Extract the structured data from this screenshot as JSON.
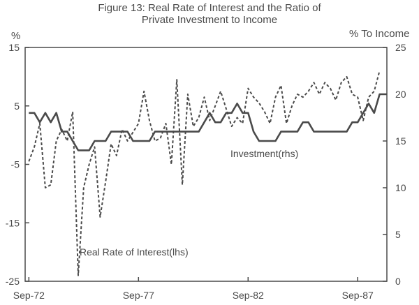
{
  "chart_data": {
    "type": "line",
    "title": [
      "Figure 13: Real Rate of Interest and the Ratio of",
      "Private Investment to Income"
    ],
    "left_axis": {
      "unit": "%",
      "range": [
        -25,
        15
      ],
      "ticks": [
        15,
        5,
        -5,
        -15,
        -25
      ]
    },
    "right_axis": {
      "unit": "% To Income",
      "range": [
        0,
        25
      ],
      "ticks": [
        25,
        20,
        15,
        10,
        5,
        0
      ]
    },
    "x_axis": {
      "range": [
        1972.5,
        1989.0
      ],
      "ticks": [
        {
          "label": "Sep-72",
          "value": 1972.67
        },
        {
          "label": "Sep-77",
          "value": 1977.67
        },
        {
          "label": "Sep-82",
          "value": 1982.67
        },
        {
          "label": "Sep-87",
          "value": 1987.67
        }
      ]
    },
    "series": [
      {
        "name": "Real Rate of Interest(lhs)",
        "axis": "left",
        "style": "dashed",
        "x": [
          1972.67,
          1972.92,
          1973.17,
          1973.42,
          1973.67,
          1973.92,
          1974.17,
          1974.42,
          1974.67,
          1974.92,
          1975.17,
          1975.42,
          1975.67,
          1975.92,
          1976.17,
          1976.42,
          1976.67,
          1976.92,
          1977.17,
          1977.42,
          1977.67,
          1977.92,
          1978.17,
          1978.42,
          1978.67,
          1978.92,
          1979.17,
          1979.42,
          1979.67,
          1979.92,
          1980.17,
          1980.42,
          1980.67,
          1980.92,
          1981.17,
          1981.42,
          1981.67,
          1981.92,
          1982.17,
          1982.42,
          1982.67,
          1982.92,
          1983.17,
          1983.42,
          1983.67,
          1983.92,
          1984.17,
          1984.42,
          1984.67,
          1984.92,
          1985.17,
          1985.42,
          1985.67,
          1985.92,
          1986.17,
          1986.42,
          1986.67,
          1986.92,
          1987.17,
          1987.42,
          1987.67,
          1987.92,
          1988.17,
          1988.42,
          1988.67
        ],
        "values": [
          -4.5,
          -2.0,
          2.0,
          -9.0,
          -8.5,
          -1.0,
          1.0,
          -1.0,
          4.0,
          -24.0,
          -9.0,
          -5.0,
          -2.0,
          -14.0,
          -8.0,
          -1.5,
          -3.5,
          1.0,
          -1.0,
          0.5,
          2.0,
          7.5,
          2.5,
          -1.0,
          -0.5,
          2.0,
          -5.0,
          9.5,
          -8.5,
          7.0,
          1.5,
          3.0,
          6.5,
          2.5,
          5.0,
          7.5,
          4.5,
          1.5,
          3.0,
          2.0,
          8.0,
          6.5,
          5.5,
          4.0,
          2.0,
          6.5,
          8.5,
          2.0,
          5.0,
          7.0,
          6.5,
          7.5,
          9.0,
          7.0,
          9.0,
          8.0,
          6.0,
          9.0,
          10.0,
          7.0,
          6.5,
          2.5,
          6.5,
          7.5,
          11.0
        ]
      },
      {
        "name": "Investment(rhs)",
        "axis": "right",
        "style": "solid",
        "x": [
          1972.67,
          1972.92,
          1973.17,
          1973.42,
          1973.67,
          1973.92,
          1974.17,
          1974.42,
          1974.67,
          1974.92,
          1975.17,
          1975.42,
          1975.67,
          1975.92,
          1976.17,
          1976.42,
          1976.67,
          1976.92,
          1977.17,
          1977.42,
          1977.67,
          1977.92,
          1978.17,
          1978.42,
          1978.67,
          1978.92,
          1979.17,
          1979.42,
          1979.67,
          1979.92,
          1980.17,
          1980.42,
          1980.67,
          1980.92,
          1981.17,
          1981.42,
          1981.67,
          1981.92,
          1982.17,
          1982.42,
          1982.67,
          1982.92,
          1983.17,
          1983.42,
          1983.67,
          1983.92,
          1984.17,
          1984.42,
          1984.67,
          1984.92,
          1985.17,
          1985.42,
          1985.67,
          1985.92,
          1986.17,
          1986.42,
          1986.67,
          1986.92,
          1987.17,
          1987.42,
          1987.67,
          1987.92,
          1988.17,
          1988.42,
          1988.67,
          1989.0
        ],
        "values": [
          18.0,
          18.0,
          17.0,
          18.0,
          17.0,
          18.0,
          16.0,
          16.0,
          15.0,
          14.0,
          14.0,
          14.0,
          15.0,
          15.0,
          15.0,
          16.0,
          16.0,
          16.0,
          16.0,
          15.0,
          15.0,
          15.0,
          15.0,
          16.0,
          16.0,
          16.0,
          16.0,
          16.0,
          16.0,
          16.0,
          16.0,
          16.0,
          17.0,
          18.0,
          17.0,
          17.0,
          18.0,
          18.0,
          19.0,
          18.0,
          18.0,
          16.0,
          15.0,
          15.0,
          15.0,
          15.0,
          16.0,
          16.0,
          16.0,
          16.0,
          17.0,
          17.0,
          16.0,
          16.0,
          16.0,
          16.0,
          16.0,
          16.0,
          16.0,
          17.0,
          17.0,
          18.0,
          19.0,
          18.0,
          20.0,
          20.0
        ]
      }
    ],
    "annotations": [
      {
        "text": "Investment(rhs)",
        "series": "Investment(rhs)"
      },
      {
        "text": "Real Rate of Interest(lhs)",
        "series": "Real Rate of Interest(lhs)"
      }
    ]
  }
}
